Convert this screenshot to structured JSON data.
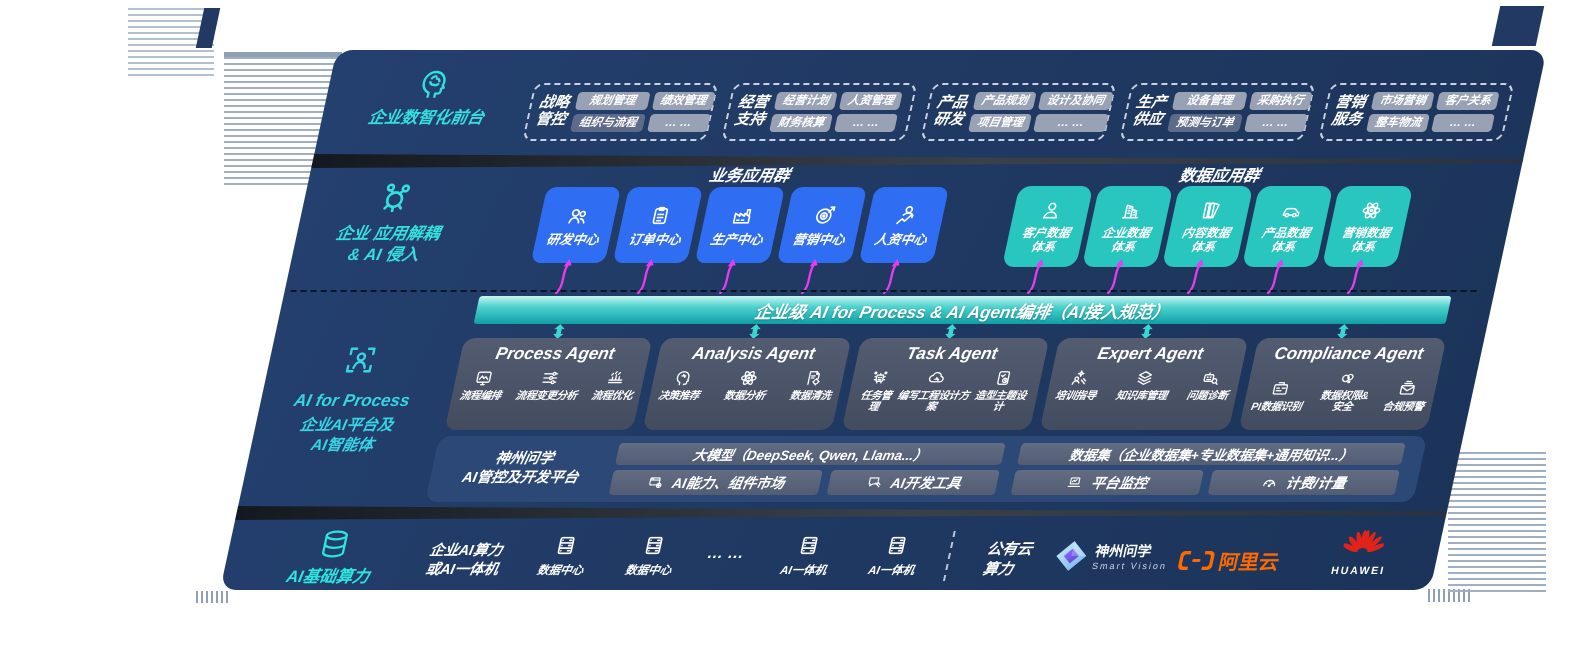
{
  "front": {
    "label": "企业数智化前台",
    "groups": [
      {
        "title": "战略\n管控",
        "p1": "规划管理",
        "p2": "绩效管理",
        "p3": "组织与流程",
        "p4": "… …"
      },
      {
        "title": "经营\n支持",
        "p1": "经营计划",
        "p2": "人资管理",
        "p3": "财务核算",
        "p4": "… …"
      },
      {
        "title": "产品\n研发",
        "p1": "产品规划",
        "p2": "设计及协同",
        "p3": "项目管理",
        "p4": "… …"
      },
      {
        "title": "生产\n供应",
        "p1": "设备管理",
        "p2": "采购执行",
        "p3": "预测与订单",
        "p4": "… …"
      },
      {
        "title": "营销\n服务",
        "p1": "市场营销",
        "p2": "客户关系",
        "p3": "整车物流",
        "p4": "… …"
      }
    ]
  },
  "decouple": {
    "label": "企业 应用解耦\n& AI 侵入"
  },
  "apps": {
    "biz_label": "业务应用群",
    "data_label": "数据应用群",
    "biz": [
      {
        "label": "研发中心"
      },
      {
        "label": "订单中心"
      },
      {
        "label": "生产中心"
      },
      {
        "label": "营销中心"
      },
      {
        "label": "人资中心"
      }
    ],
    "data": [
      {
        "label": "客户数据\n体系"
      },
      {
        "label": "企业数据\n体系"
      },
      {
        "label": "内容数据\n体系"
      },
      {
        "label": "产品数据\n体系"
      },
      {
        "label": "营销数据\n体系"
      }
    ]
  },
  "orchestration": {
    "label": "企业级 AI for Process & AI Agent编排（AI接入规范）"
  },
  "ai_rail": {
    "line1": "AI for Process",
    "line2": "企业AI平台及\nAI智能体"
  },
  "agents": [
    {
      "title": "Process Agent",
      "items": [
        "流程编排",
        "流程变更分析",
        "流程优化"
      ]
    },
    {
      "title": "Analysis Agent",
      "items": [
        "决策推荐",
        "数据分析",
        "数据清洗"
      ]
    },
    {
      "title": "Task Agent",
      "items": [
        "任务管理",
        "编写工程设计方案",
        "造型主题设计"
      ]
    },
    {
      "title": "Expert Agent",
      "items": [
        "培训指导",
        "知识库管理",
        "问题诊断"
      ]
    },
    {
      "title": "Compliance Agent",
      "items": [
        "PI数据识别",
        "数据权限&\n安全",
        "合规预警"
      ]
    }
  ],
  "platform": {
    "label": "神州问学\nAI管控及开发平台",
    "model_bar": "大模型（DeepSeek, Qwen, Llama...）",
    "cap_market": "AI能力、组件市场",
    "dev_tools": "AI开发工具",
    "dataset_bar": "数据集（企业数据集+专业数据集+通用知识...）",
    "monitor": "平台监控",
    "billing": "计费/计量"
  },
  "infra": {
    "label": "AI基础算力",
    "enterprise": "企业AI算力\n或AI一体机",
    "dc1": "数据中心",
    "dc2": "数据中心",
    "dots": "… …",
    "ai1": "AI一体机",
    "ai2": "AI一体机",
    "public_cloud": "公有云\n算力",
    "sv_name": "神州问学",
    "sv_sub": "Smart Vision",
    "aliyun": "阿里云",
    "huawei": "HUAWEI"
  },
  "colors": {
    "panel_navy": "#203a64",
    "accent_teal": "#35dfdc",
    "box_blue": "#2f6df2",
    "box_teal": "#29c5bf",
    "arrow_magenta": "#e93bf0",
    "bar_teal": "#18a8aa"
  }
}
